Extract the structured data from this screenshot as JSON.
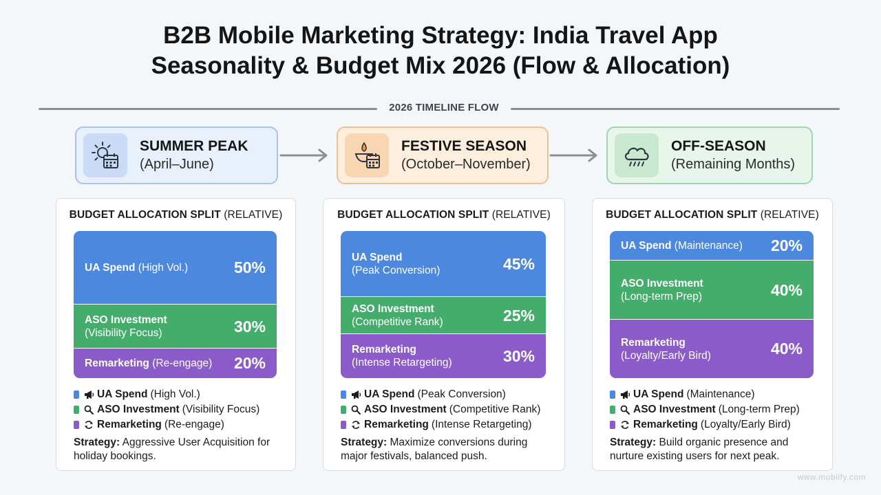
{
  "title": {
    "line1": "B2B Mobile Marketing Strategy: India Travel App",
    "line2": "Seasonality & Budget Mix 2026 (Flow & Allocation)"
  },
  "timeline": {
    "label": "2026 TIMELINE FLOW"
  },
  "seasons": [
    {
      "name": "SUMMER PEAK",
      "period": "(April–June)",
      "icon": "sun-calendar-icon"
    },
    {
      "name": "FESTIVE SEASON",
      "period": "(October–November)",
      "icon": "diya-calendar-icon"
    },
    {
      "name": "OFF-SEASON",
      "period": "(Remaining Months)",
      "icon": "rain-cloud-icon"
    }
  ],
  "cards": [
    {
      "heading_bold": "BUDGET ALLOCATION SPLIT",
      "heading_rest": " (RELATIVE)",
      "segments": [
        {
          "name": "UA Spend",
          "note_inline": " (High Vol.)",
          "note_block": "",
          "value": 50,
          "pct": "50%"
        },
        {
          "name": "ASO Investment",
          "note_inline": "",
          "note_block": "(Visibility Focus)",
          "value": 30,
          "pct": "30%"
        },
        {
          "name": "Remarketing",
          "note_inline": " (Re-engage)",
          "note_block": "",
          "value": 20,
          "pct": "20%"
        }
      ],
      "legend": [
        {
          "name": "UA Spend",
          "note": "(High Vol.)",
          "icon": "megaphone-icon"
        },
        {
          "name": "ASO Investment",
          "note": "(Visibility Focus)",
          "icon": "magnifier-icon"
        },
        {
          "name": "Remarketing",
          "note": "(Re-engage)",
          "icon": "refresh-icon"
        }
      ],
      "strategy_label": "Strategy:",
      "strategy_text": " Aggressive User Acquisition for holiday bookings."
    },
    {
      "heading_bold": "BUDGET ALLOCATION SPLIT",
      "heading_rest": " (RELATIVE)",
      "segments": [
        {
          "name": "UA Spend",
          "note_inline": "",
          "note_block": "(Peak Conversion)",
          "value": 45,
          "pct": "45%"
        },
        {
          "name": "ASO Investment",
          "note_inline": "",
          "note_block": "(Competitive Rank)",
          "value": 25,
          "pct": "25%"
        },
        {
          "name": "Remarketing",
          "note_inline": "",
          "note_block": "(Intense Retargeting)",
          "value": 30,
          "pct": "30%"
        }
      ],
      "legend": [
        {
          "name": "UA Spend",
          "note": "(Peak Conversion)",
          "icon": "megaphone-icon"
        },
        {
          "name": "ASO Investment",
          "note": "(Competitive Rank)",
          "icon": "magnifier-icon"
        },
        {
          "name": "Remarketing",
          "note": "(Intense Retargeting)",
          "icon": "refresh-icon"
        }
      ],
      "strategy_label": "Strategy:",
      "strategy_text": " Maximize conversions during major festivals, balanced push."
    },
    {
      "heading_bold": "BUDGET ALLOCATION SPLIT",
      "heading_rest": " (RELATIVE)",
      "segments": [
        {
          "name": "UA Spend",
          "note_inline": " (Maintenance)",
          "note_block": "",
          "value": 20,
          "pct": "20%"
        },
        {
          "name": "ASO Investment",
          "note_inline": "",
          "note_block": "(Long-term Prep)",
          "value": 40,
          "pct": "40%"
        },
        {
          "name": "Remarketing",
          "note_inline": "",
          "note_block": "(Loyalty/Early Bird)",
          "value": 40,
          "pct": "40%"
        }
      ],
      "legend": [
        {
          "name": "UA Spend",
          "note": "(Maintenance)",
          "icon": "megaphone-icon"
        },
        {
          "name": "ASO Investment",
          "note": "(Long-term Prep)",
          "icon": "magnifier-icon"
        },
        {
          "name": "Remarketing",
          "note": "(Loyalty/Early Bird)",
          "icon": "refresh-icon"
        }
      ],
      "strategy_label": "Strategy:",
      "strategy_text": " Build organic presence and nurture existing users for next peak."
    }
  ],
  "colors": {
    "ua": "#4c88de",
    "aso": "#45ad6b",
    "remarketing": "#8b5bc9"
  },
  "watermark": "www.mobiify.com"
}
